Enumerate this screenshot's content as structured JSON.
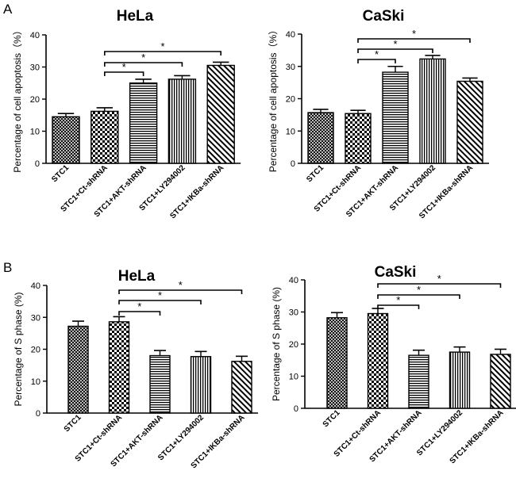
{
  "panels": {
    "a": "A",
    "b": "B"
  },
  "chart_data": [
    {
      "type": "bar",
      "title": "HeLa",
      "ylabel": "Percentage of cell apoptosis（%）",
      "xlabel": "",
      "ylim": [
        0,
        40
      ],
      "yticks": [
        0,
        10,
        20,
        30,
        40
      ],
      "categories": [
        "STC1",
        "STC1+Ct-shRNA",
        "STC1+AKT-shRNA",
        "STC1+LY294002",
        "STC1+IKBa-shRNA"
      ],
      "values": [
        14.5,
        16.2,
        25.0,
        26.2,
        30.5
      ],
      "errors": [
        1.0,
        1.1,
        1.2,
        1.1,
        1.0
      ],
      "patterns": [
        "crosshatch",
        "checker",
        "hstripes",
        "vstripes",
        "diagonal"
      ],
      "significance": [
        {
          "from": 1,
          "to": 2,
          "label": "*"
        },
        {
          "from": 1,
          "to": 3,
          "label": "*"
        },
        {
          "from": 1,
          "to": 4,
          "label": "*"
        }
      ]
    },
    {
      "type": "bar",
      "title": "CaSki",
      "ylabel": "Percentage of cell apoptosis（%）",
      "xlabel": "",
      "ylim": [
        0,
        40
      ],
      "yticks": [
        0,
        10,
        20,
        30,
        40
      ],
      "categories": [
        "STC1",
        "STC1+Ct-shRNA",
        "STC1+AKT-shRNA",
        "STC1+LY294002",
        "STC1+IKBa-shRNA"
      ],
      "values": [
        15.7,
        15.4,
        28.2,
        32.3,
        25.4
      ],
      "errors": [
        1.0,
        1.0,
        1.8,
        1.1,
        1.0
      ],
      "patterns": [
        "crosshatch",
        "checker",
        "hstripes",
        "vstripes",
        "diagonal"
      ],
      "significance": [
        {
          "from": 1,
          "to": 2,
          "label": "*"
        },
        {
          "from": 1,
          "to": 3,
          "label": "*"
        },
        {
          "from": 1,
          "to": 4,
          "label": "*"
        }
      ]
    },
    {
      "type": "bar",
      "title": "HeLa",
      "ylabel": "Percentage of S phase (%)",
      "xlabel": "",
      "ylim": [
        0,
        40
      ],
      "yticks": [
        0,
        10,
        20,
        30,
        40
      ],
      "categories": [
        "STC1",
        "STC1+Ct-shRNA",
        "STC1+AKT-shRNA",
        "STC1+LY294002",
        "STC1+IKBa-shRNA"
      ],
      "values": [
        27.2,
        28.6,
        18.0,
        17.7,
        16.2
      ],
      "errors": [
        1.6,
        1.6,
        1.6,
        1.6,
        1.6
      ],
      "patterns": [
        "crosshatch",
        "checker",
        "hstripes",
        "vstripes",
        "diagonal"
      ],
      "significance": [
        {
          "from": 1,
          "to": 2,
          "label": "*"
        },
        {
          "from": 1,
          "to": 3,
          "label": "*"
        },
        {
          "from": 1,
          "to": 4,
          "label": "*"
        }
      ]
    },
    {
      "type": "bar",
      "title": "CaSki",
      "ylabel": "Percentage of S phase (%)",
      "xlabel": "",
      "ylim": [
        0,
        40
      ],
      "yticks": [
        0,
        10,
        20,
        30,
        40
      ],
      "categories": [
        "STC1",
        "STC1+Ct-shRNA",
        "STC1+AKT-shRNA",
        "STC1+LY294002",
        "STC1+IKBa-shRNA"
      ],
      "values": [
        28.2,
        29.5,
        16.5,
        17.5,
        16.8
      ],
      "errors": [
        1.6,
        1.6,
        1.6,
        1.6,
        1.6
      ],
      "patterns": [
        "crosshatch",
        "checker",
        "hstripes",
        "vstripes",
        "diagonal"
      ],
      "significance": [
        {
          "from": 1,
          "to": 2,
          "label": "*"
        },
        {
          "from": 1,
          "to": 3,
          "label": "*"
        },
        {
          "from": 1,
          "to": 4,
          "label": "*"
        }
      ]
    }
  ]
}
